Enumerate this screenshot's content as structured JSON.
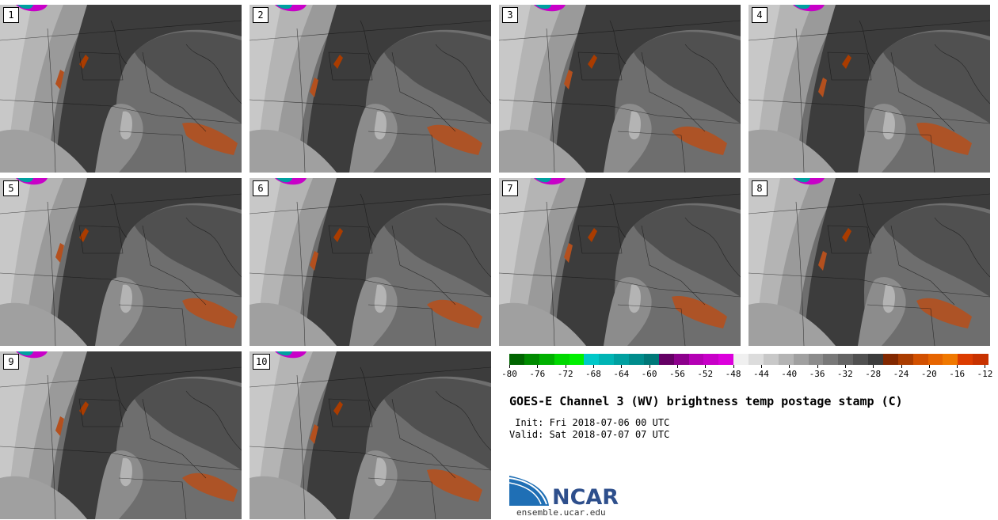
{
  "panels": [
    {
      "label": "1"
    },
    {
      "label": "2"
    },
    {
      "label": "3"
    },
    {
      "label": "4"
    },
    {
      "label": "5"
    },
    {
      "label": "6"
    },
    {
      "label": "7"
    },
    {
      "label": "8"
    },
    {
      "label": "9"
    },
    {
      "label": "10"
    }
  ],
  "colorbar": {
    "colors": [
      "#006400",
      "#008a00",
      "#00b000",
      "#00d800",
      "#00f000",
      "#00c8c8",
      "#00b4b4",
      "#00a0a0",
      "#008c8c",
      "#007878",
      "#640064",
      "#8c008c",
      "#b400b4",
      "#c800c8",
      "#dc00dc",
      "#f0f0f0",
      "#dcdcdc",
      "#c8c8c8",
      "#b4b4b4",
      "#a0a0a0",
      "#8c8c8c",
      "#787878",
      "#646464",
      "#505050",
      "#3c3c3c",
      "#822800",
      "#aa3c00",
      "#d25000",
      "#e66400",
      "#f07800",
      "#dc3c00",
      "#c83200"
    ],
    "ticks": [
      "-80",
      "-76",
      "-72",
      "-68",
      "-64",
      "-60",
      "-56",
      "-52",
      "-48",
      "-44",
      "-40",
      "-36",
      "-32",
      "-28",
      "-24",
      "-20",
      "-16",
      "-12"
    ]
  },
  "title": "GOES-E Channel 3 (WV) brightness temp postage stamp (C)",
  "init_line": " Init: Fri 2018-07-06 00 UTC",
  "valid_line": "Valid: Sat 2018-07-07 07 UTC",
  "logo": {
    "word": "NCAR",
    "url": "ensemble.ucar.edu"
  }
}
